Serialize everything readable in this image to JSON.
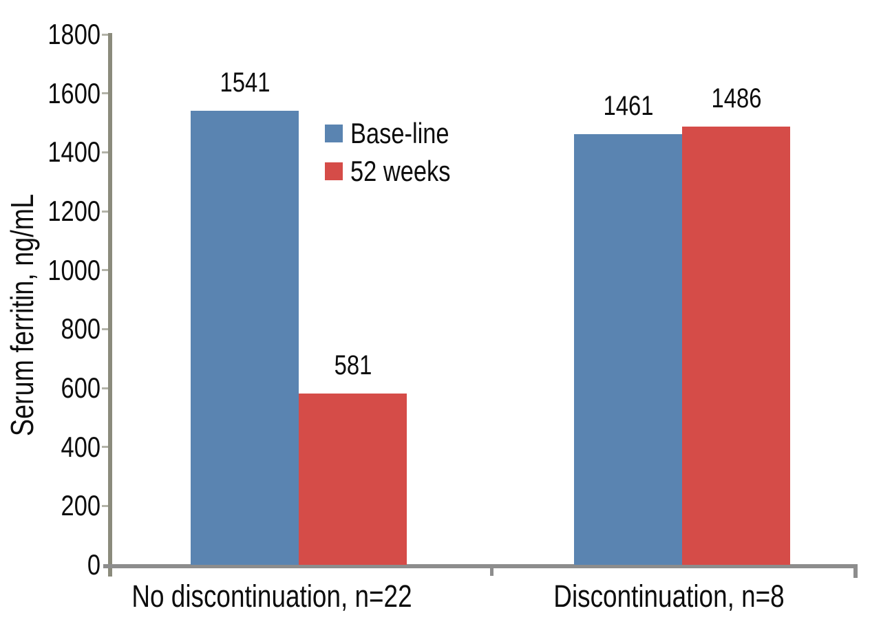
{
  "chart_data": {
    "type": "bar",
    "title": "",
    "xlabel": "",
    "ylabel": "Serum ferritin, ng/mL",
    "categories": [
      "No discontinuation, n=22",
      "Discontinuation, n=8"
    ],
    "series": [
      {
        "name": "Base-line",
        "color": "#5A84B1",
        "values": [
          1541,
          1461
        ]
      },
      {
        "name": "52 weeks",
        "color": "#D54C48",
        "values": [
          581,
          1486
        ]
      }
    ],
    "ylim": [
      0,
      1800
    ],
    "yticks": [
      0,
      200,
      400,
      600,
      800,
      1000,
      1200,
      1400,
      1600,
      1800
    ],
    "grid": false,
    "legend_position": "upper-left-inside",
    "value_labels_shown": true
  },
  "colors": {
    "background": "#ffffff",
    "text": "#0d0d0d",
    "y_axis_line": "#8b8b7c",
    "x_axis_line": "#8d8d8d",
    "minor_tick": "#b3b3a8"
  }
}
